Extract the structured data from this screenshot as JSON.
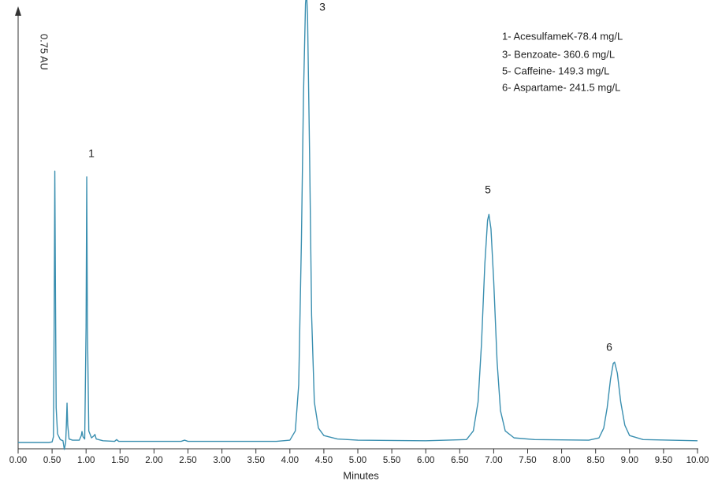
{
  "chart_data": {
    "type": "line",
    "x_label": "Minutes",
    "y_label": "0.75 AU",
    "xlim": [
      0,
      10
    ],
    "ylim": [
      0,
      0.75
    ],
    "xticks": [
      {
        "value": 0,
        "label": "0.00"
      },
      {
        "value": 0.5,
        "label": "0.50"
      },
      {
        "value": 1,
        "label": "1.00"
      },
      {
        "value": 1.5,
        "label": "1.50"
      },
      {
        "value": 2,
        "label": "2.00"
      },
      {
        "value": 2.5,
        "label": "2.50"
      },
      {
        "value": 3,
        "label": "3.00"
      },
      {
        "value": 3.5,
        "label": "3.50"
      },
      {
        "value": 4,
        "label": "4.00"
      },
      {
        "value": 4.5,
        "label": "4.50"
      },
      {
        "value": 5,
        "label": "5.00"
      },
      {
        "value": 5.5,
        "label": "5.50"
      },
      {
        "value": 6,
        "label": "6.00"
      },
      {
        "value": 6.5,
        "label": "6.50"
      },
      {
        "value": 7,
        "label": "7.00"
      },
      {
        "value": 7.5,
        "label": "7.50"
      },
      {
        "value": 8,
        "label": "8.00"
      },
      {
        "value": 8.5,
        "label": "8.50"
      },
      {
        "value": 9,
        "label": "9.00"
      },
      {
        "value": 9.5,
        "label": "9.50"
      },
      {
        "value": 10,
        "label": "10.00"
      }
    ],
    "peak_labels": [
      "1",
      "3",
      "5",
      "6"
    ],
    "notes": [
      "1- AcesulfameK-78.4 mg/L",
      "3- Benzoate- 360.6 mg/L",
      "5- Caffeine- 149.3 mg/L",
      "6- Aspartame- 241.5 mg/L"
    ],
    "series": [
      {
        "color": "#3a8fb0",
        "x": [
          0,
          0.45,
          0.5,
          0.52,
          0.53,
          0.54,
          0.55,
          0.56,
          0.58,
          0.62,
          0.66,
          0.68,
          0.7,
          0.71,
          0.72,
          0.73,
          0.75,
          0.8,
          0.9,
          0.93,
          0.94,
          0.955,
          0.98,
          1.0,
          1.01,
          1.02,
          1.04,
          1.08,
          1.12,
          1.13,
          1.15,
          1.25,
          1.42,
          1.45,
          1.48,
          1.8,
          2.4,
          2.45,
          2.5,
          3.8,
          4.0,
          4.08,
          4.13,
          4.17,
          4.2,
          4.23,
          4.245,
          4.26,
          4.29,
          4.32,
          4.36,
          4.42,
          4.5,
          4.7,
          5.0,
          6.0,
          6.6,
          6.7,
          6.77,
          6.82,
          6.87,
          6.91,
          6.93,
          6.96,
          7.0,
          7.05,
          7.1,
          7.17,
          7.3,
          7.6,
          8.4,
          8.55,
          8.62,
          8.67,
          8.72,
          8.76,
          8.78,
          8.82,
          8.87,
          8.93,
          9.0,
          9.2,
          10.0
        ],
        "values": [
          0,
          0,
          0.001,
          0.01,
          0.2,
          0.47,
          0.25,
          0.06,
          0.015,
          0.005,
          0.003,
          -0.012,
          0.0,
          0.03,
          0.068,
          0.03,
          0.006,
          0.004,
          0.004,
          0.012,
          0.019,
          0.01,
          0.006,
          0.2,
          0.46,
          0.2,
          0.02,
          0.008,
          0.012,
          0.014,
          0.006,
          0.003,
          0.002,
          0.005,
          0.002,
          0.002,
          0.002,
          0.004,
          0.002,
          0.002,
          0.004,
          0.02,
          0.1,
          0.35,
          0.6,
          0.76,
          0.78,
          0.74,
          0.5,
          0.22,
          0.07,
          0.025,
          0.012,
          0.006,
          0.004,
          0.003,
          0.005,
          0.02,
          0.07,
          0.17,
          0.31,
          0.385,
          0.395,
          0.37,
          0.28,
          0.14,
          0.055,
          0.02,
          0.008,
          0.005,
          0.004,
          0.008,
          0.025,
          0.06,
          0.11,
          0.137,
          0.139,
          0.12,
          0.07,
          0.03,
          0.012,
          0.005,
          0.003
        ]
      }
    ]
  }
}
